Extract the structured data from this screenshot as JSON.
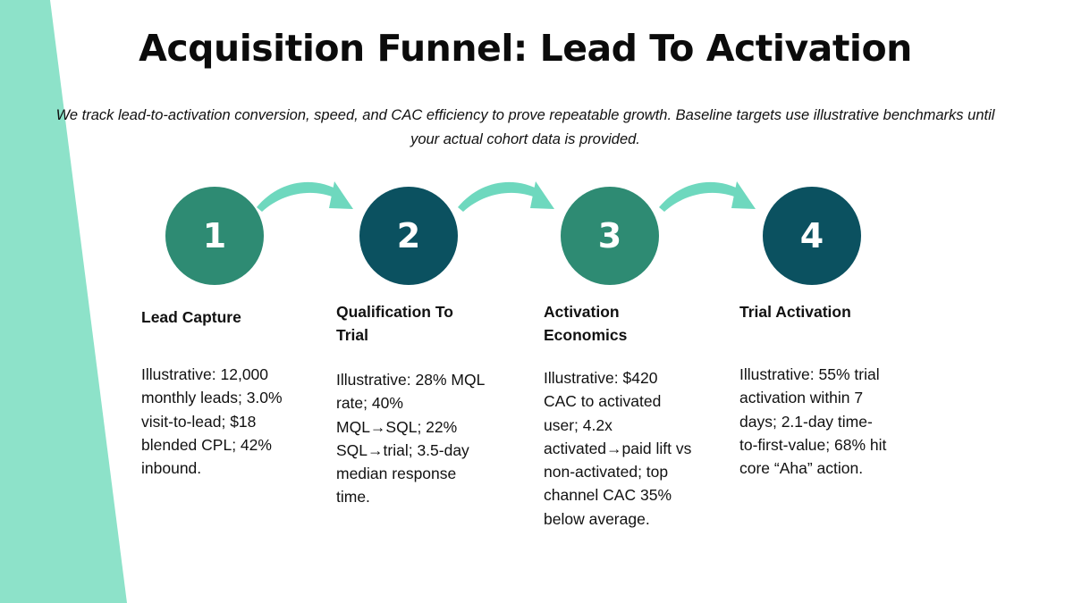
{
  "colors": {
    "accent_band": "#8de2c9",
    "arrow": "#6ed8be",
    "circle_teal": "#2e8b73",
    "circle_navy": "#0b5160",
    "text": "#111111"
  },
  "header": {
    "title": "Acquisition Funnel: Lead To Activation",
    "subtitle": "We track lead-to-activation conversion, speed, and CAC efficiency to prove repeatable growth. Baseline targets use illustrative benchmarks until your actual cohort data is provided."
  },
  "steps": [
    {
      "number": "1",
      "heading": "Lead Capture",
      "body": "Illustrative: 12,000 monthly leads; 3.0% visit-to-lead; $18 blended CPL; 42% inbound.",
      "circle_color": "#2e8b73"
    },
    {
      "number": "2",
      "heading": "Qualification To Trial",
      "body": "Illustrative: 28% MQL rate; 40% MQL→SQL; 22% SQL→trial; 3.5-day median response time.",
      "circle_color": "#0b5160"
    },
    {
      "number": "3",
      "heading": "Activation Economics",
      "body": "Illustrative: $420 CAC to activated user; 4.2x activated→paid lift vs non-activated; top channel CAC 35% below average.",
      "circle_color": "#2e8b73"
    },
    {
      "number": "4",
      "heading": "Trial Activation",
      "body": "Illustrative: 55% trial activation within 7 days; 2.1-day time-to-first-value; 68% hit core “Aha” action.",
      "circle_color": "#0b5160"
    }
  ]
}
